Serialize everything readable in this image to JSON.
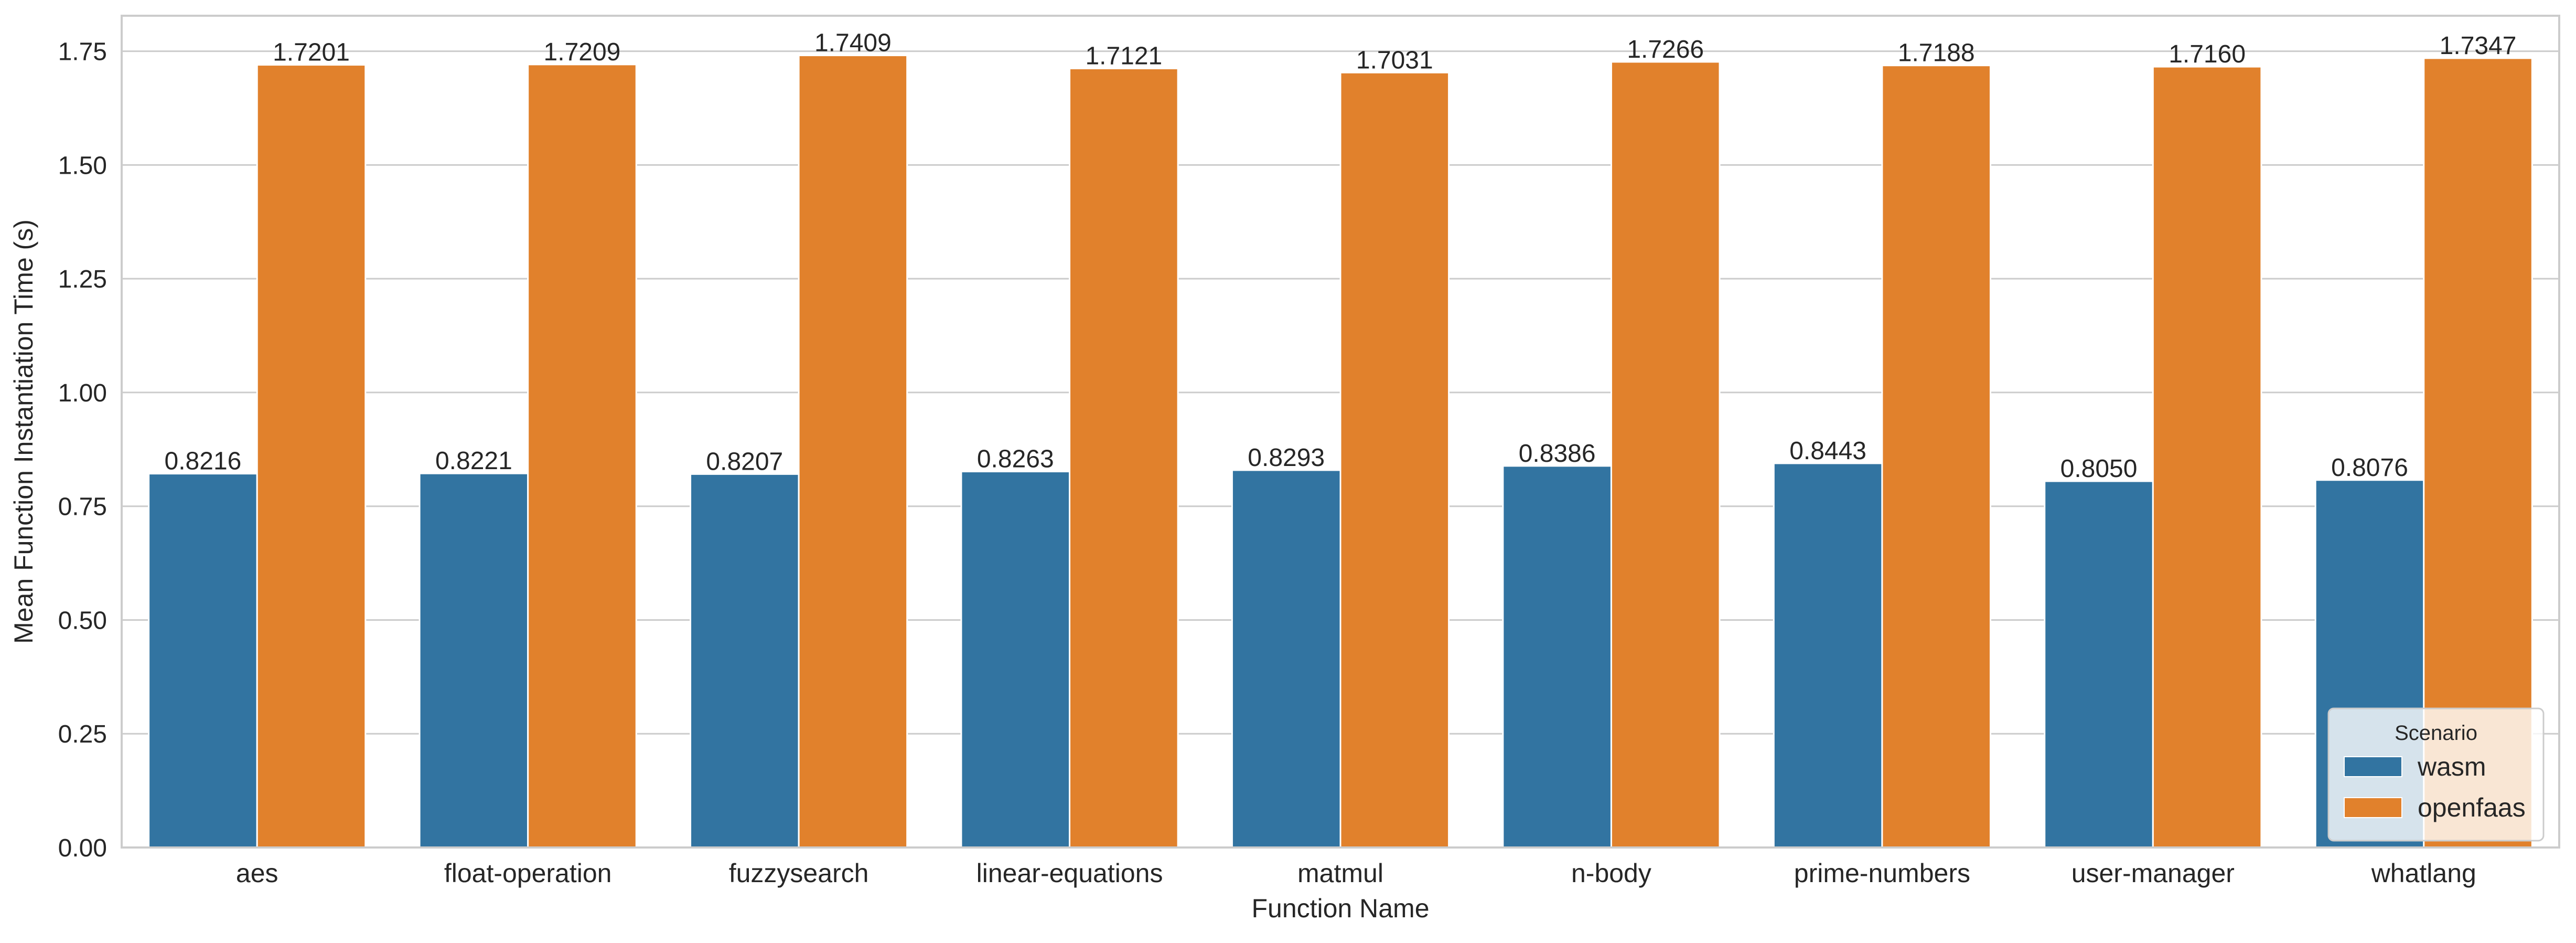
{
  "chart_data": {
    "type": "bar",
    "title": "",
    "xlabel": "Function Name",
    "ylabel": "Mean Function Instantiation Time (s)",
    "categories": [
      "aes",
      "float-operation",
      "fuzzysearch",
      "linear-equations",
      "matmul",
      "n-body",
      "prime-numbers",
      "user-manager",
      "whatlang"
    ],
    "series": [
      {
        "name": "wasm",
        "color": "#3274a1",
        "values": [
          0.8216,
          0.8221,
          0.8207,
          0.8263,
          0.8293,
          0.8386,
          0.8443,
          0.805,
          0.8076
        ],
        "labels": [
          "0.8216",
          "0.8221",
          "0.8207",
          "0.8263",
          "0.8293",
          "0.8386",
          "0.8443",
          "0.8050",
          "0.8076"
        ]
      },
      {
        "name": "openfaas",
        "color": "#e1812c",
        "values": [
          1.7201,
          1.7209,
          1.7409,
          1.7121,
          1.7031,
          1.7266,
          1.7188,
          1.716,
          1.7347
        ],
        "labels": [
          "1.7201",
          "1.7209",
          "1.7409",
          "1.7121",
          "1.7031",
          "1.7266",
          "1.7188",
          "1.7160",
          "1.7347"
        ]
      }
    ],
    "ylim": [
      0,
      1.828
    ],
    "yticks": [
      0.0,
      0.25,
      0.5,
      0.75,
      1.0,
      1.25,
      1.5,
      1.75
    ],
    "ytick_labels": [
      "0.00",
      "0.25",
      "0.50",
      "0.75",
      "1.00",
      "1.25",
      "1.50",
      "1.75"
    ],
    "grid": true,
    "legend": {
      "title": "Scenario",
      "placement": "lower-right",
      "entries": [
        "wasm",
        "openfaas"
      ]
    }
  }
}
